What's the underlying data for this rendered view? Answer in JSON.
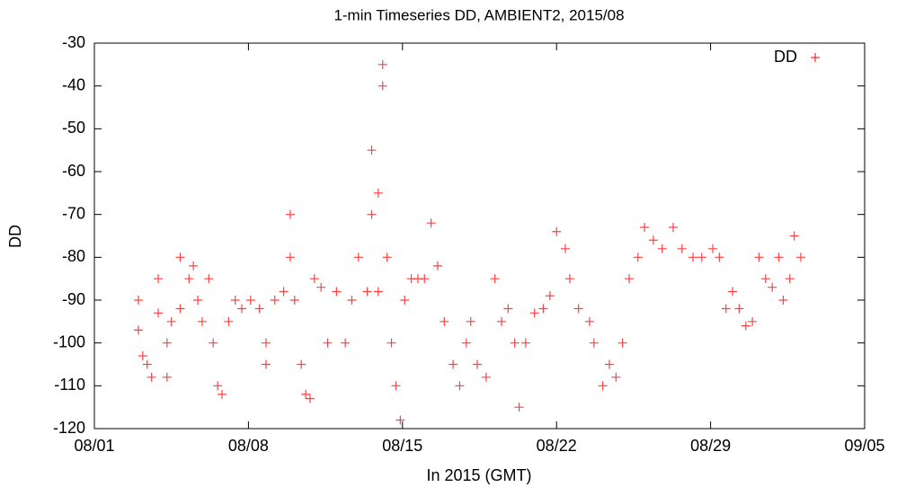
{
  "chart_data": {
    "type": "scatter",
    "title": "1-min Timeseries DD, AMBIENT2, 2015/08",
    "xlabel": "In 2015 (GMT)",
    "ylabel": "DD",
    "legend": "top right",
    "xlim": [
      1,
      36
    ],
    "xticks": [
      {
        "value": 1,
        "label": "08/01"
      },
      {
        "value": 8,
        "label": "08/08"
      },
      {
        "value": 15,
        "label": "08/15"
      },
      {
        "value": 22,
        "label": "08/22"
      },
      {
        "value": 29,
        "label": "08/29"
      },
      {
        "value": 36,
        "label": "09/05"
      }
    ],
    "ylim": [
      -120,
      -30
    ],
    "yticks": [
      -120,
      -110,
      -100,
      -90,
      -80,
      -70,
      -60,
      -50,
      -40,
      -30
    ],
    "series": [
      {
        "name": "DD",
        "color": "#ff0000",
        "x": [
          3.0,
          3.0,
          3.2,
          3.4,
          3.6,
          3.9,
          3.9,
          4.3,
          4.3,
          4.5,
          4.9,
          4.9,
          5.3,
          5.5,
          5.7,
          5.9,
          6.2,
          6.4,
          6.6,
          6.8,
          7.1,
          7.4,
          7.7,
          8.1,
          8.5,
          8.8,
          8.8,
          9.2,
          9.6,
          9.9,
          9.9,
          10.1,
          10.4,
          10.6,
          10.8,
          11.0,
          11.3,
          11.6,
          12.0,
          12.4,
          12.7,
          13.0,
          13.4,
          13.6,
          13.6,
          13.9,
          13.9,
          14.1,
          14.1,
          14.3,
          14.5,
          14.7,
          14.9,
          15.1,
          15.4,
          15.7,
          16.0,
          16.3,
          16.6,
          16.9,
          17.3,
          17.6,
          17.9,
          18.1,
          18.4,
          18.8,
          19.2,
          19.5,
          19.8,
          20.1,
          20.3,
          20.6,
          21.0,
          21.4,
          21.7,
          22.0,
          22.4,
          22.6,
          23.0,
          23.5,
          23.7,
          24.1,
          24.4,
          24.7,
          25.0,
          25.3,
          25.7,
          26.0,
          26.4,
          26.8,
          27.3,
          27.7,
          28.2,
          28.6,
          29.1,
          29.4,
          29.7,
          30.0,
          30.3,
          30.6,
          30.9,
          31.2,
          31.5,
          31.8,
          32.1,
          32.3,
          32.6,
          32.8,
          33.1
        ],
        "values": [
          -97,
          -90,
          -103,
          -105,
          -108,
          -93,
          -85,
          -100,
          -108,
          -95,
          -80,
          -92,
          -85,
          -82,
          -90,
          -95,
          -85,
          -100,
          -110,
          -112,
          -95,
          -90,
          -92,
          -90,
          -92,
          -105,
          -100,
          -90,
          -88,
          -70,
          -80,
          -90,
          -105,
          -112,
          -113,
          -85,
          -87,
          -100,
          -88,
          -100,
          -90,
          -80,
          -88,
          -70,
          -55,
          -65,
          -88,
          -35,
          -40,
          -80,
          -100,
          -110,
          -118,
          -90,
          -85,
          -85,
          -85,
          -72,
          -82,
          -95,
          -105,
          -110,
          -100,
          -95,
          -105,
          -108,
          -85,
          -95,
          -92,
          -100,
          -115,
          -100,
          -93,
          -92,
          -89,
          -74,
          -78,
          -85,
          -92,
          -95,
          -100,
          -110,
          -105,
          -108,
          -100,
          -85,
          -80,
          -73,
          -76,
          -78,
          -73,
          -78,
          -80,
          -80,
          -78,
          -80,
          -92,
          -88,
          -92,
          -96,
          -95,
          -80,
          -85,
          -87,
          -80,
          -90,
          -85,
          -75,
          -80
        ]
      }
    ]
  }
}
